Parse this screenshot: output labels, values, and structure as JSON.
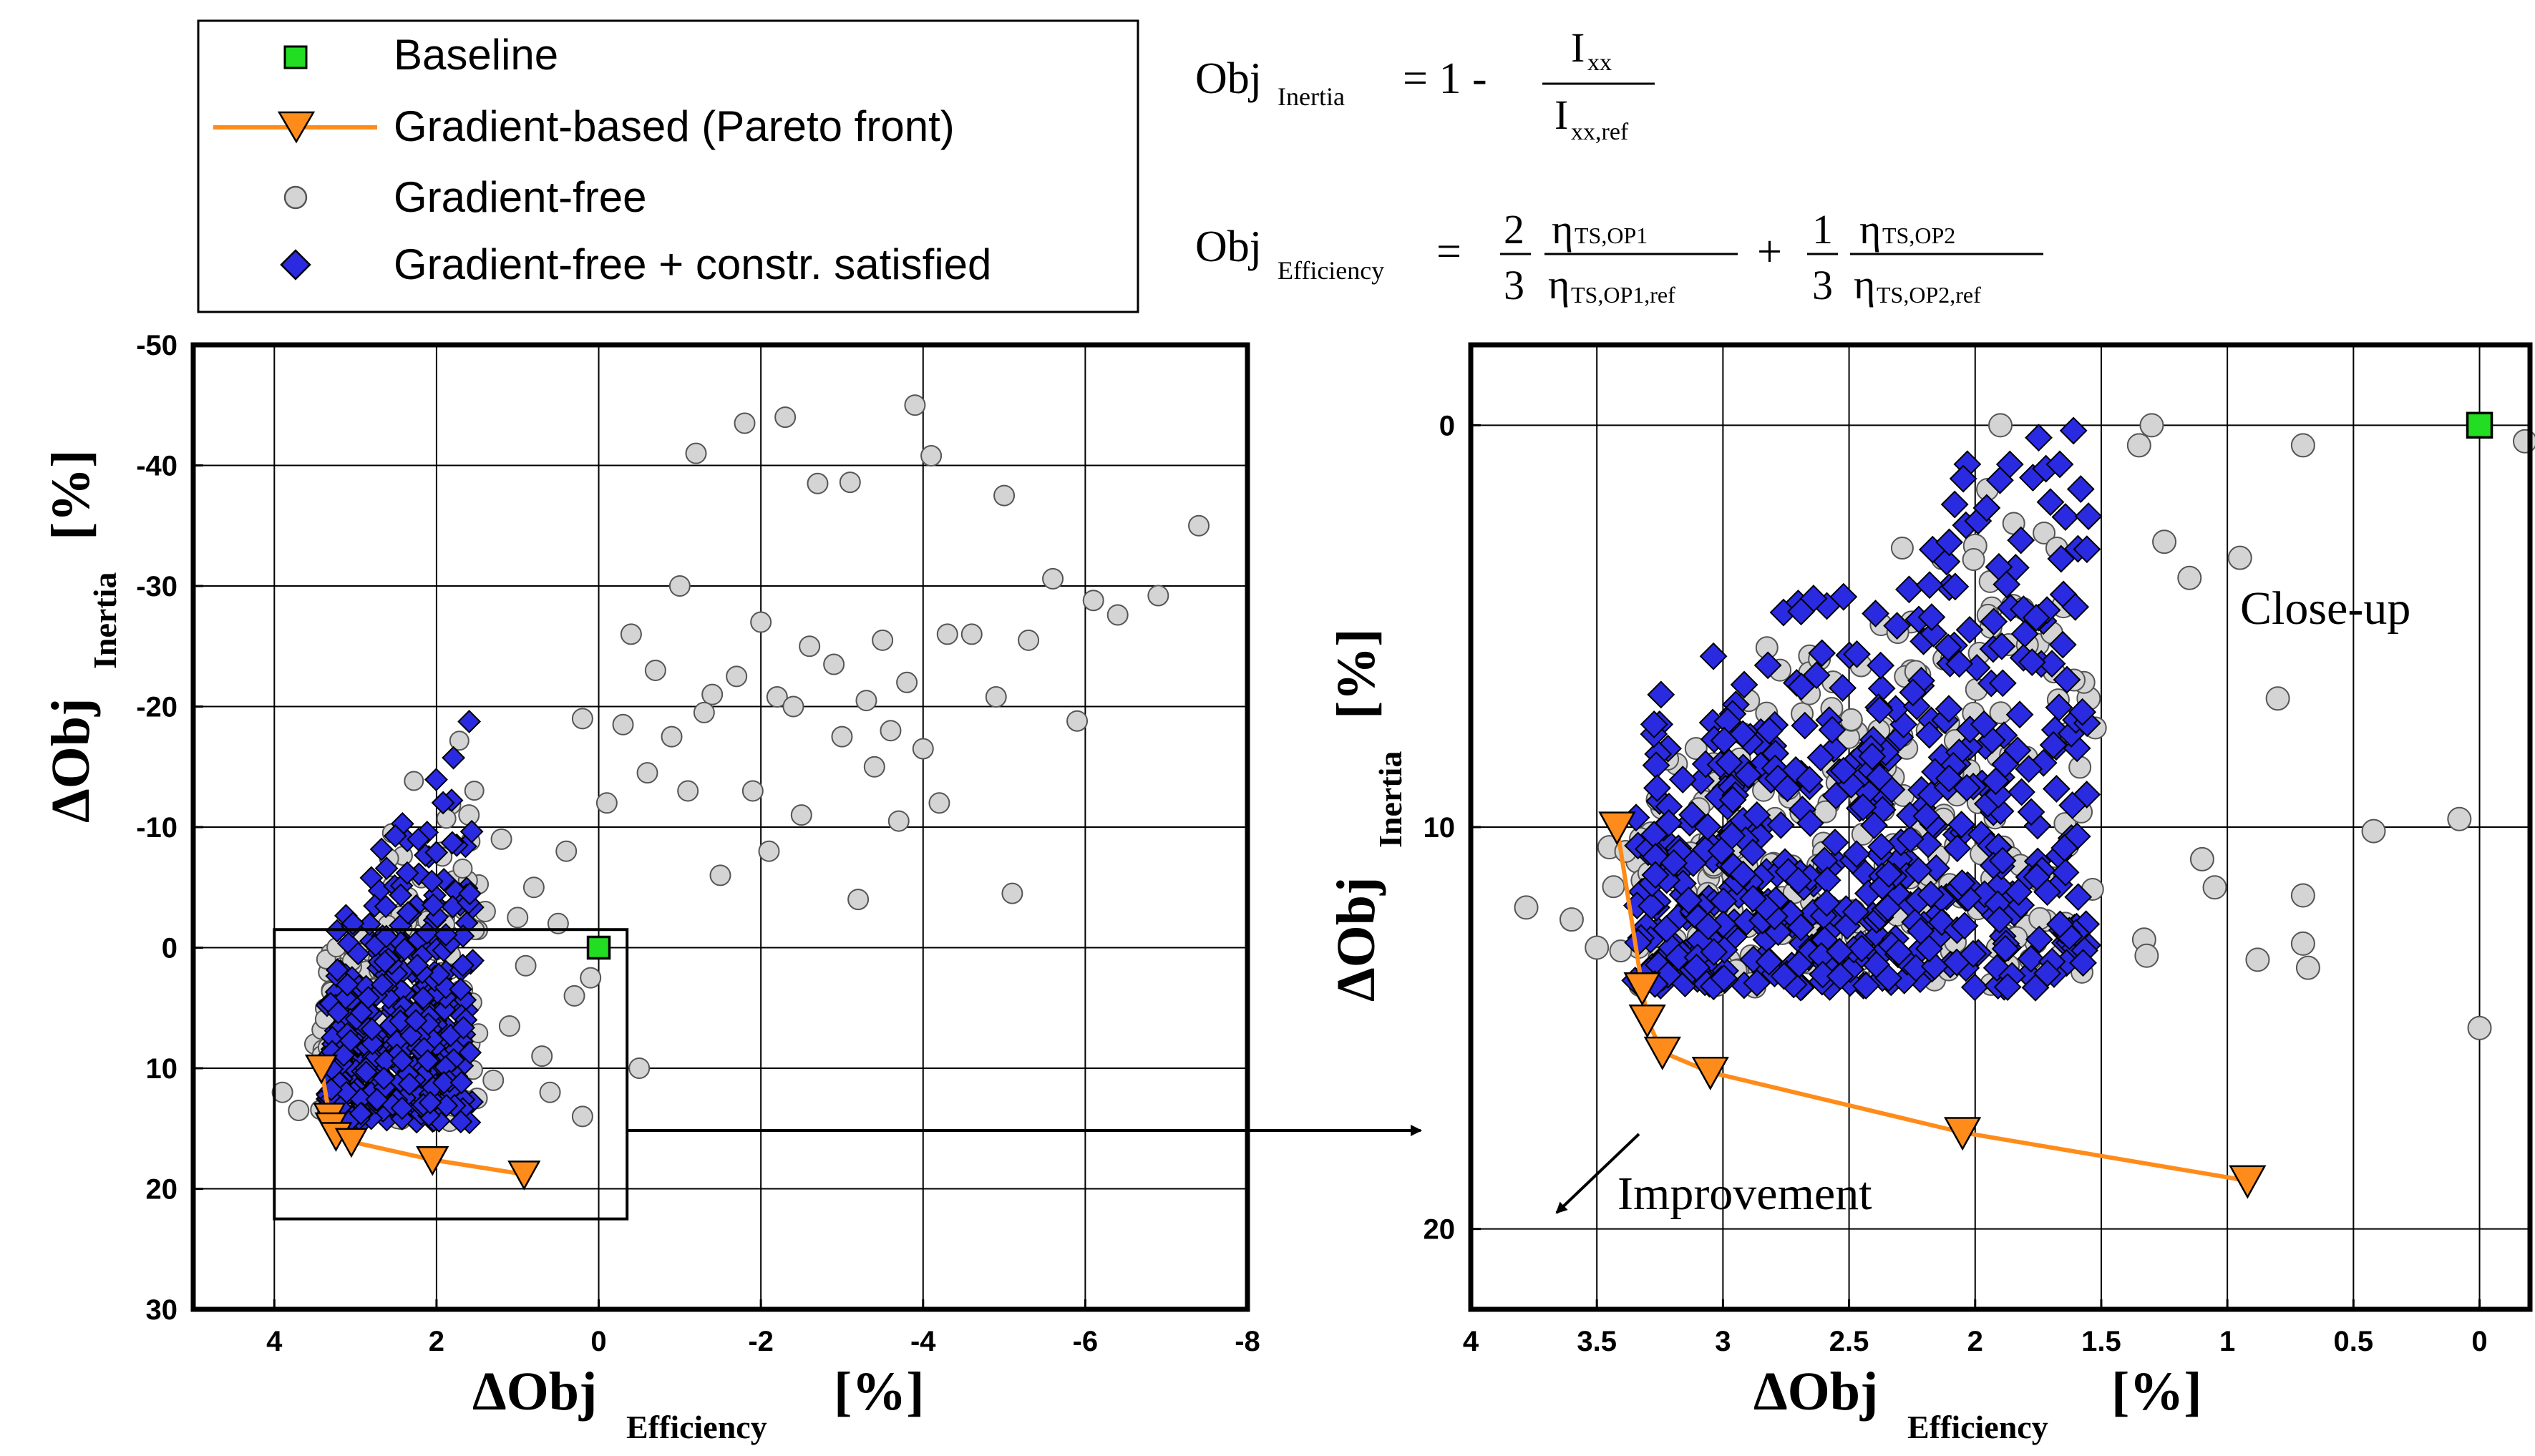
{
  "legend": {
    "items": [
      {
        "label": "Baseline",
        "marker": "square",
        "color": "#22dd22"
      },
      {
        "label": "Gradient-based (Pareto front)",
        "marker": "triangle-line",
        "color": "#ff8c1a"
      },
      {
        "label": "Gradient-free",
        "marker": "circle",
        "color": "#d4d4d4"
      },
      {
        "label": "Gradient-free + constr. satisfied",
        "marker": "diamond",
        "color": "#2a2ae0"
      }
    ]
  },
  "formulas": {
    "inertia": {
      "lhs": "Obj",
      "lhs_sub": "Inertia",
      "eq": "= 1 -",
      "num": "I",
      "num_sub": "xx",
      "den": "I",
      "den_sub": "xx,ref"
    },
    "efficiency": {
      "lhs": "Obj",
      "lhs_sub": "Efficiency",
      "eq": "=",
      "c1_num": "2",
      "c1_den": "3",
      "t1_num": "η",
      "t1_num_sub": "TS,OP1",
      "t1_den": "η",
      "t1_den_sub": "TS,OP1,ref",
      "plus": "+",
      "c2_num": "1",
      "c2_den": "3",
      "t2_num": "η",
      "t2_num_sub": "TS,OP2",
      "t2_den": "η",
      "t2_den_sub": "TS,OP2,ref"
    }
  },
  "colors": {
    "baseline": "#22dd22",
    "pareto": "#ff8c1a",
    "gradient_free": "#d4d4d4",
    "constr_satisfied": "#2a2ae0",
    "grid": "#000000"
  },
  "annotations": {
    "closeup_label": "Close-up",
    "improvement_label": "Improvement"
  },
  "chart_data": [
    {
      "type": "scatter",
      "name": "overview",
      "xlabel_main": "ΔObj",
      "xlabel_sub": "Efficiency",
      "xlabel_unit": "[%]",
      "ylabel_main": "ΔObj",
      "ylabel_sub": "Inertia",
      "ylabel_unit": "[%]",
      "xlim": [
        5,
        -8
      ],
      "ylim": [
        30,
        -50
      ],
      "xticks": [
        4,
        2,
        0,
        -2,
        -4,
        -6,
        -8
      ],
      "yticks": [
        -50,
        -40,
        -30,
        -20,
        -10,
        0,
        10,
        20,
        30
      ],
      "grid": true,
      "zoom_box": {
        "x": [
          4,
          -0.35
        ],
        "y": [
          -1.5,
          22.5
        ]
      },
      "baseline": {
        "x": 0,
        "y": 0
      },
      "pareto_front": {
        "x": [
          3.42,
          3.32,
          3.3,
          3.24,
          3.05,
          2.05,
          0.92
        ],
        "y": [
          10,
          14,
          14.8,
          15.6,
          16.1,
          17.6,
          18.8
        ]
      },
      "gradient_free_samples": {
        "x": [
          -2.3,
          -1.8,
          -2.7,
          -1.2,
          -3.1,
          -3.9,
          -4.1,
          -5.0,
          -5.6,
          -6.1,
          -6.4,
          -6.9,
          -7.4,
          -0.4,
          -1.0,
          -2.0,
          -2.6,
          -3.5,
          -4.3,
          -5.3,
          -0.7,
          -1.4,
          -1.7,
          -2.2,
          -2.9,
          -3.3,
          -3.8,
          -4.6,
          0.2,
          -0.3,
          -0.9,
          -1.3,
          -2.4,
          -3.0,
          -3.6,
          -4.0,
          -4.9,
          -5.9,
          -0.1,
          -0.6,
          -1.1,
          -1.9,
          -2.5,
          -3.4,
          -4.2,
          -2.1,
          -3.7,
          -5.1,
          -3.2,
          -1.5,
          0.5,
          1.0,
          1.4,
          0.8,
          0.4,
          1.2,
          1.6,
          0.9,
          0.3,
          0.1,
          1.1,
          0.6,
          -0.5,
          0.2,
          1.5,
          2.1,
          1.8,
          2.6,
          3.0,
          3.3,
          3.7,
          3.9,
          1.9,
          2.4,
          2.9,
          3.5,
          1.3,
          0.7
        ],
        "y": [
          -44,
          -43.5,
          -38.5,
          -41,
          -38.6,
          -45,
          -40.8,
          -37.5,
          -30.6,
          -28.8,
          -27.6,
          -29.2,
          -35,
          -26,
          -30,
          -27,
          -25,
          -25.5,
          -26,
          -25.5,
          -23,
          -21,
          -22.5,
          -20.8,
          -23.5,
          -20.5,
          -22,
          -26,
          -19,
          -18.5,
          -17.5,
          -19.5,
          -20,
          -17.5,
          -18,
          -16.5,
          -20.8,
          -18.8,
          -12,
          -14.5,
          -13,
          -13,
          -11,
          -15,
          -12,
          -8,
          -10.5,
          -4.5,
          -4,
          -6,
          -2,
          -2.5,
          -3,
          -5,
          -8,
          -9,
          -11,
          1.5,
          4,
          2.5,
          6.5,
          12,
          10,
          14,
          12.5,
          10.8,
          4.3,
          6,
          2,
          0.5,
          13.5,
          12,
          -1,
          -3,
          5,
          8,
          11,
          9
        ],
        "color": "#d4d4d4"
      },
      "constraint_satisfied_region": {
        "x_range": [
          3.35,
          1.55
        ],
        "y_range": [
          14.5,
          -22
        ],
        "color": "#2a2ae0"
      }
    },
    {
      "type": "scatter",
      "name": "close-up",
      "xlabel_main": "ΔObj",
      "xlabel_sub": "Efficiency",
      "xlabel_unit": "[%]",
      "ylabel_main": "ΔObj",
      "ylabel_sub": "Inertia",
      "ylabel_unit": "[%]",
      "xlim": [
        4,
        -0.2
      ],
      "ylim": [
        22,
        -2
      ],
      "xticks": [
        4,
        3.5,
        3,
        2.5,
        2,
        1.5,
        1,
        0.5,
        0
      ],
      "xtick_labels": [
        "4",
        "3.5",
        "3",
        "2.5",
        "2",
        "1.5",
        "1",
        "0.5",
        "0"
      ],
      "yticks": [
        0,
        10,
        20
      ],
      "grid": true,
      "baseline": {
        "x": 0,
        "y": 0
      },
      "pareto_front": {
        "x": [
          3.42,
          3.32,
          3.3,
          3.24,
          3.05,
          2.05,
          0.92
        ],
        "y": [
          10,
          14,
          14.8,
          15.6,
          16.1,
          17.6,
          18.8
        ]
      },
      "gradient_free_samples": {
        "x": [
          3.78,
          3.6,
          3.5,
          3.45,
          1.33,
          1.32,
          1.05,
          0.95,
          0.88,
          0.7,
          0.68,
          0.7,
          0.42,
          0.08,
          0.0,
          0.7,
          -0.18,
          0.8,
          1.15,
          1.25,
          1.35,
          1.3,
          1.55,
          1.65,
          1.85,
          2.0,
          2.15,
          2.2,
          1.1,
          1.9
        ],
        "y": [
          12,
          12.3,
          13,
          10.5,
          12.8,
          13.2,
          11.5,
          3.3,
          13.3,
          12.9,
          13.5,
          11.7,
          10.1,
          9.8,
          15,
          0.5,
          0.4,
          6.8,
          3.8,
          2.9,
          0.5,
          0,
          6.8,
          4.5,
          4.5,
          3,
          11.8,
          12.5,
          10.8,
          0
        ],
        "color": "#d4d4d4"
      },
      "constraint_satisfied_region": {
        "x_range": [
          3.35,
          1.55
        ],
        "y_range": [
          14,
          -2
        ],
        "color": "#2a2ae0"
      }
    }
  ]
}
